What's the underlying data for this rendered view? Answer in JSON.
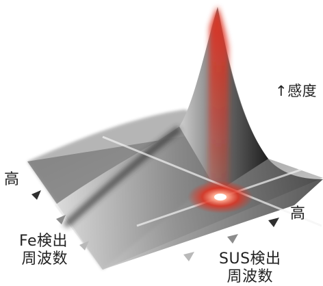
{
  "labels": {
    "sensitivity": "↑感度",
    "high_left": "高",
    "high_right": "高",
    "fe_axis_line1": "Fe検出",
    "fe_axis_line2": "周波数",
    "sus_axis_line1": "SUS検出",
    "sus_axis_line2": "周波数"
  },
  "colors": {
    "peak": "#e0301e",
    "surface_dark": "#3a3a3a",
    "surface_light": "#d8d8d8",
    "arrow": "#2f2f2f",
    "arrow_light": "#b9b9b9"
  }
}
